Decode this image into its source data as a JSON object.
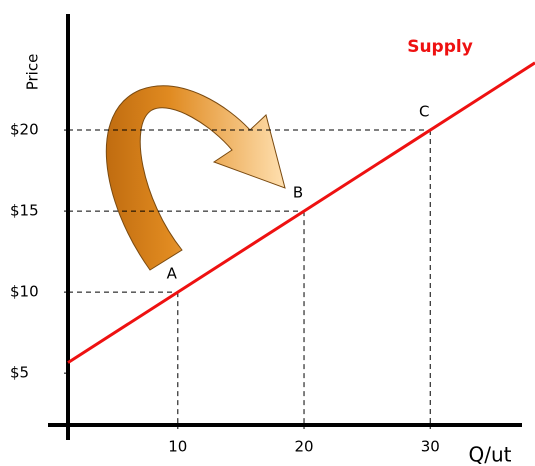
{
  "chart_data": {
    "type": "line",
    "x_label": "Q/ut",
    "y_label": "Price",
    "series": [
      {
        "name": "Supply",
        "color": "#ee1111",
        "x": [
          1.3,
          10,
          20,
          30,
          38.3
        ],
        "values": [
          5.65,
          10,
          15,
          20,
          24.15
        ]
      }
    ],
    "points": [
      {
        "label": "A",
        "x": 10,
        "y": 10
      },
      {
        "label": "B",
        "x": 20,
        "y": 15
      },
      {
        "label": "C",
        "x": 30,
        "y": 20
      }
    ],
    "xlim": [
      1.3,
      38.3
    ],
    "ylim": [
      1.8,
      27.1
    ],
    "xticks": [
      10,
      20,
      30
    ],
    "yticks": [
      {
        "value": 5,
        "label": "$5"
      },
      {
        "value": 10,
        "label": "$10"
      },
      {
        "value": 15,
        "label": "$15"
      },
      {
        "value": 20,
        "label": "$20"
      }
    ]
  }
}
